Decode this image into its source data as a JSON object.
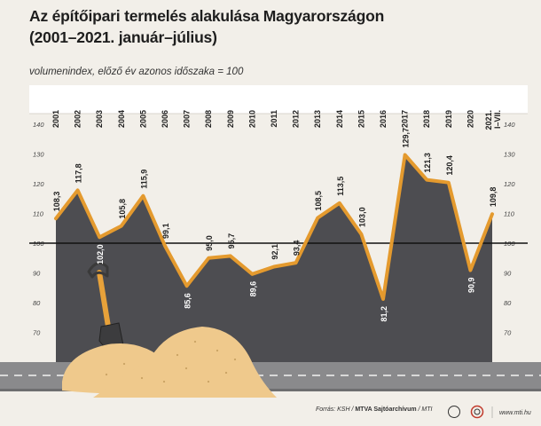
{
  "title_line1": "Az építőipari termelés alakulása Magyarországon",
  "title_line2": "(2001–2021. január–július)",
  "subtitle": "volumenindex, előző év azonos időszaka = 100",
  "footer": {
    "source_prefix": "Forrás: KSH / ",
    "source_bold": "MTVA Sajtóarchívum",
    "source_suffix": " / MTI",
    "site": "www.mti.hu"
  },
  "colors": {
    "line": "#e49a2e",
    "area": "#4d4d51",
    "background": "#f2efe9",
    "road": "#8a8a8c",
    "sand": "#efc98c"
  },
  "chart_data": {
    "type": "area",
    "categories": [
      "2001",
      "2002",
      "2003",
      "2004",
      "2005",
      "2006",
      "2007",
      "2008",
      "2009",
      "2010",
      "2011",
      "2012",
      "2013",
      "2014",
      "2015",
      "2016",
      "2017",
      "2018",
      "2019",
      "2020",
      "2021. I–VII."
    ],
    "values": [
      108.3,
      117.8,
      102.0,
      105.8,
      115.9,
      99.1,
      85.6,
      95.0,
      95.7,
      89.6,
      92.1,
      93.4,
      108.5,
      113.5,
      103.0,
      81.2,
      129.7,
      121.3,
      120.4,
      90.9,
      109.8
    ],
    "value_labels": [
      "108,3",
      "117,8",
      "102,0",
      "105,8",
      "115,9",
      "99,1",
      "85,6",
      "95,0",
      "95,7",
      "89,6",
      "92,1",
      "93,4",
      "108,5",
      "113,5",
      "103,0",
      "81,2",
      "129,7",
      "121,3",
      "120,4",
      "90,9",
      "109,8"
    ],
    "yticks": [
      70,
      80,
      90,
      100,
      110,
      120,
      130,
      140
    ],
    "ylim": [
      60,
      140
    ],
    "reference_line": 100,
    "grid": false,
    "xlabel": "",
    "ylabel": ""
  }
}
